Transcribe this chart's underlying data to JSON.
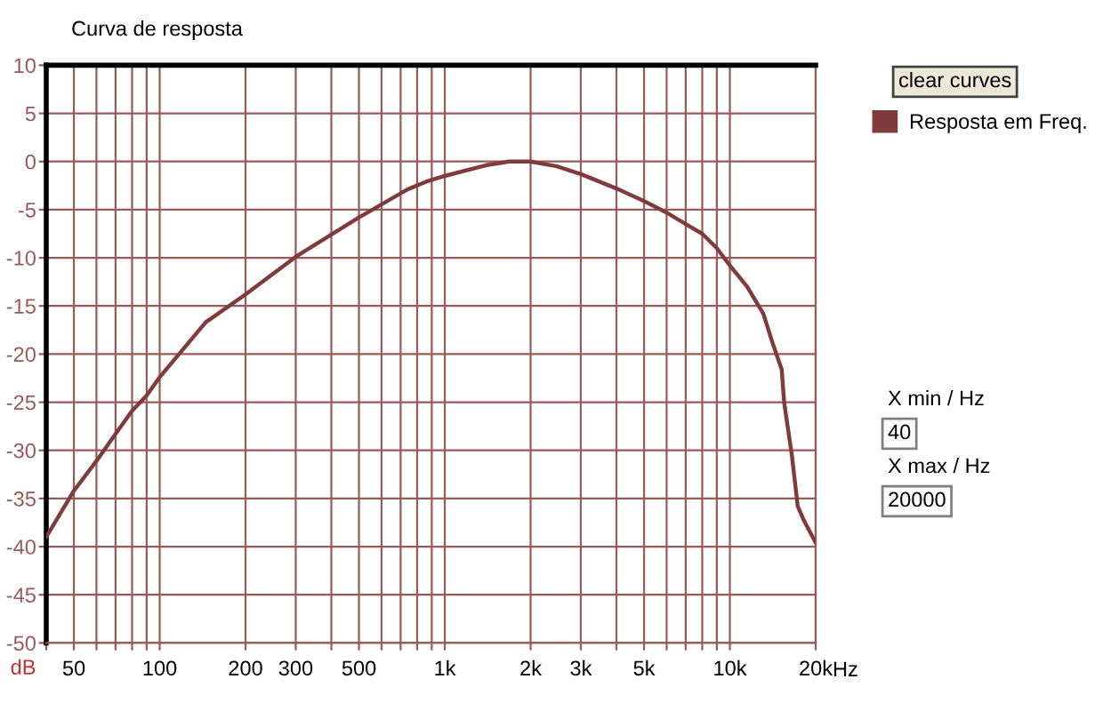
{
  "chart_data": {
    "type": "line",
    "title": "Curva de resposta",
    "ylabel": "dB",
    "xlabel": "Hz",
    "x": [
      40,
      50,
      60,
      70,
      80,
      90,
      100,
      145,
      200,
      300,
      500,
      740,
      860,
      1000,
      1390,
      1680,
      2000,
      2470,
      3000,
      4000,
      5000,
      6000,
      7000,
      8000,
      9000,
      10000,
      11500,
      13100,
      14100,
      15200,
      15500,
      16500,
      17300,
      18200,
      20000
    ],
    "series": [
      {
        "name": "Resposta em Freq.",
        "color": "#803c3c",
        "values": [
          -39,
          -34.2,
          -31.1,
          -28.3,
          -25.9,
          -24.3,
          -22.4,
          -16.7,
          -13.8,
          -9.9,
          -5.8,
          -2.9,
          -2.1,
          -1.5,
          -0.4,
          0,
          0,
          -0.5,
          -1.3,
          -2.8,
          -4.1,
          -5.3,
          -6.5,
          -7.5,
          -9,
          -10.8,
          -13,
          -15.8,
          -18.8,
          -21.6,
          -25,
          -30.5,
          -35.8,
          -37.3,
          -39.6
        ]
      }
    ],
    "log": "x",
    "xlim": [
      40,
      20000
    ],
    "xticks": [
      {
        "value": 40,
        "label": null
      },
      50,
      {
        "value": 60,
        "label": null
      },
      {
        "value": 70,
        "label": null
      },
      {
        "value": 80,
        "label": null
      },
      {
        "value": 90,
        "label": null
      },
      100,
      200,
      300,
      {
        "value": 400,
        "label": null
      },
      500,
      {
        "value": 600,
        "label": null
      },
      {
        "value": 700,
        "label": null
      },
      {
        "value": 800,
        "label": null
      },
      {
        "value": 900,
        "label": null
      },
      {
        "value": 1000,
        "label": "1k"
      },
      {
        "value": 2000,
        "label": "2k"
      },
      {
        "value": 3000,
        "label": "3k"
      },
      {
        "value": 4000,
        "label": null
      },
      {
        "value": 5000,
        "label": "5k"
      },
      {
        "value": 6000,
        "label": null
      },
      {
        "value": 7000,
        "label": null
      },
      {
        "value": 8000,
        "label": null
      },
      {
        "value": 9000,
        "label": null
      },
      {
        "value": 10000,
        "label": "10k"
      },
      {
        "value": 20000,
        "label": "20k"
      }
    ],
    "ylim": [
      -50,
      10
    ],
    "yticks": [
      -50,
      -45,
      -40,
      -35,
      -30,
      -25,
      -20,
      -15,
      -10,
      -5,
      0,
      5,
      10
    ],
    "grid": true,
    "legend": "right",
    "annotations": [
      "clear curves",
      "X min / Hz",
      "40",
      "X max / Hz",
      "20000"
    ]
  }
}
